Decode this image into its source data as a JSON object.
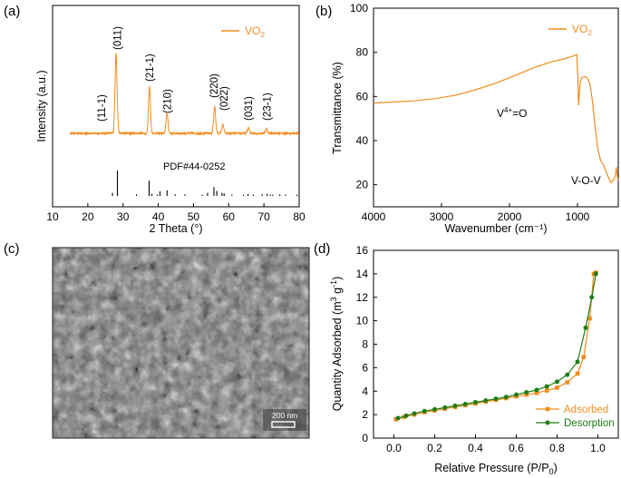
{
  "panels": {
    "a": {
      "label": "(a)",
      "legend": "VO",
      "legend_sub": "2",
      "ref_label": "PDF#44-0252",
      "peaks": [
        "(11-1)",
        "(011)",
        "(21-1)",
        "(210)",
        "(220)",
        "(022)",
        "(031)",
        "(23-1)"
      ]
    },
    "b": {
      "label": "(b)",
      "legend": "VO",
      "legend_sub": "2",
      "ann1_main": "V",
      "ann1_sup": "4+",
      "ann1_rest": "=O",
      "ann2": "V-O-V"
    },
    "c": {
      "label": "(c)",
      "scale_bar": "200 nm"
    },
    "d": {
      "label": "(d)"
    }
  },
  "colors": {
    "orange": "#F28C1E",
    "green": "#1E7D14",
    "axis": "#000000"
  },
  "chart_data": [
    {
      "type": "line",
      "panel": "a",
      "xlabel": "2 Theta (°)",
      "ylabel": "Intensity (a.u.)",
      "xlim": [
        10,
        80
      ],
      "xticks": [
        10,
        20,
        30,
        40,
        50,
        60,
        70,
        80
      ],
      "series": [
        {
          "name": "VO2",
          "x": [
            15,
            25,
            27.6,
            28.0,
            28.4,
            28.8,
            30,
            33,
            37.0,
            37.5,
            38.0,
            40,
            42.0,
            42.5,
            43.0,
            45,
            55.4,
            56.0,
            56.6,
            57.8,
            58.3,
            58.8,
            62,
            65.2,
            65.6,
            66.0,
            70.2,
            70.7,
            71.2,
            75
          ],
          "y": [
            0,
            0,
            0.03,
            1.0,
            0.06,
            0,
            0,
            0.02,
            0.03,
            0.59,
            0.03,
            0,
            0.02,
            0.25,
            0.02,
            0,
            0.04,
            0.34,
            0.04,
            0.02,
            0.11,
            0.02,
            0,
            0.02,
            0.07,
            0.02,
            0.02,
            0.06,
            0.02,
            0
          ]
        }
      ],
      "reference_peaks": {
        "x": [
          27.0,
          28.4,
          33.8,
          37.4,
          38.2,
          39.8,
          40.5,
          42.5,
          44.8,
          47.6,
          52.5,
          54.0,
          55.8,
          56.6,
          58.1,
          58.7,
          60.9,
          64.2,
          65.5,
          67.0,
          69.5,
          70.9,
          71.8,
          72.5,
          74.5,
          76.2,
          79.4
        ],
        "y": [
          0.12,
          1.0,
          0.06,
          0.6,
          0.08,
          0.05,
          0.18,
          0.22,
          0.06,
          0.06,
          0.05,
          0.12,
          0.35,
          0.2,
          0.12,
          0.1,
          0.05,
          0.05,
          0.08,
          0.05,
          0.06,
          0.08,
          0.05,
          0.05,
          0.06,
          0.05,
          0.05
        ]
      }
    },
    {
      "type": "line",
      "panel": "b",
      "xlabel": "Wavenumber (cm⁻¹)",
      "ylabel": "Transmittance (%)",
      "xlim": [
        4000,
        400
      ],
      "ylim": [
        10,
        100
      ],
      "xticks": [
        4000,
        3000,
        2000,
        1000
      ],
      "yticks": [
        20,
        40,
        60,
        80,
        100
      ],
      "series": [
        {
          "name": "VO2",
          "x": [
            4000,
            3700,
            3400,
            3100,
            2800,
            2500,
            2200,
            2000,
            1800,
            1600,
            1400,
            1200,
            1050,
            1010,
            995,
            985,
            975,
            960,
            940,
            900,
            860,
            820,
            780,
            740,
            700,
            660,
            620,
            580,
            540,
            510,
            490,
            470,
            455,
            440,
            430,
            420,
            410,
            400
          ],
          "y": [
            57,
            57.5,
            58,
            59,
            60.5,
            63,
            66,
            68.5,
            71,
            73.5,
            75.5,
            77,
            78.5,
            79,
            68,
            56,
            60,
            66,
            68.5,
            69,
            68.5,
            66,
            58,
            46,
            36,
            31,
            29,
            26,
            23,
            21,
            21.5,
            22,
            23,
            25,
            28,
            26,
            23,
            22
          ]
        }
      ],
      "annotations": [
        "V4+=O",
        "V-O-V"
      ]
    },
    {
      "type": "line",
      "panel": "d",
      "xlabel": "Relative Pressure (P/P0)",
      "ylabel": "Quantity Adsorbed (m3 g-1)",
      "xlim": [
        -0.1,
        1.1
      ],
      "ylim": [
        0,
        16
      ],
      "xticks": [
        0.0,
        0.2,
        0.4,
        0.6,
        0.8,
        1.0
      ],
      "yticks": [
        0,
        2,
        4,
        6,
        8,
        10,
        12,
        14,
        16
      ],
      "legend_position": "lower-right",
      "series": [
        {
          "name": "Adsorbed",
          "x": [
            0.01,
            0.05,
            0.1,
            0.15,
            0.2,
            0.25,
            0.3,
            0.35,
            0.4,
            0.45,
            0.5,
            0.55,
            0.6,
            0.65,
            0.7,
            0.75,
            0.8,
            0.85,
            0.9,
            0.93,
            0.96,
            0.98,
            0.99
          ],
          "y": [
            1.6,
            1.8,
            2.0,
            2.2,
            2.35,
            2.5,
            2.65,
            2.8,
            2.95,
            3.1,
            3.25,
            3.4,
            3.55,
            3.7,
            3.85,
            4.05,
            4.3,
            4.75,
            5.5,
            6.9,
            10.2,
            14.0,
            14.1
          ]
        },
        {
          "name": "Desorption",
          "x": [
            0.02,
            0.06,
            0.1,
            0.15,
            0.2,
            0.25,
            0.3,
            0.35,
            0.4,
            0.45,
            0.5,
            0.55,
            0.6,
            0.65,
            0.7,
            0.75,
            0.8,
            0.85,
            0.9,
            0.94,
            0.97,
            0.99
          ],
          "y": [
            1.7,
            1.9,
            2.1,
            2.3,
            2.45,
            2.6,
            2.75,
            2.9,
            3.05,
            3.2,
            3.35,
            3.5,
            3.7,
            3.9,
            4.1,
            4.4,
            4.8,
            5.4,
            6.5,
            9.4,
            12.0,
            14.0
          ]
        }
      ]
    }
  ]
}
